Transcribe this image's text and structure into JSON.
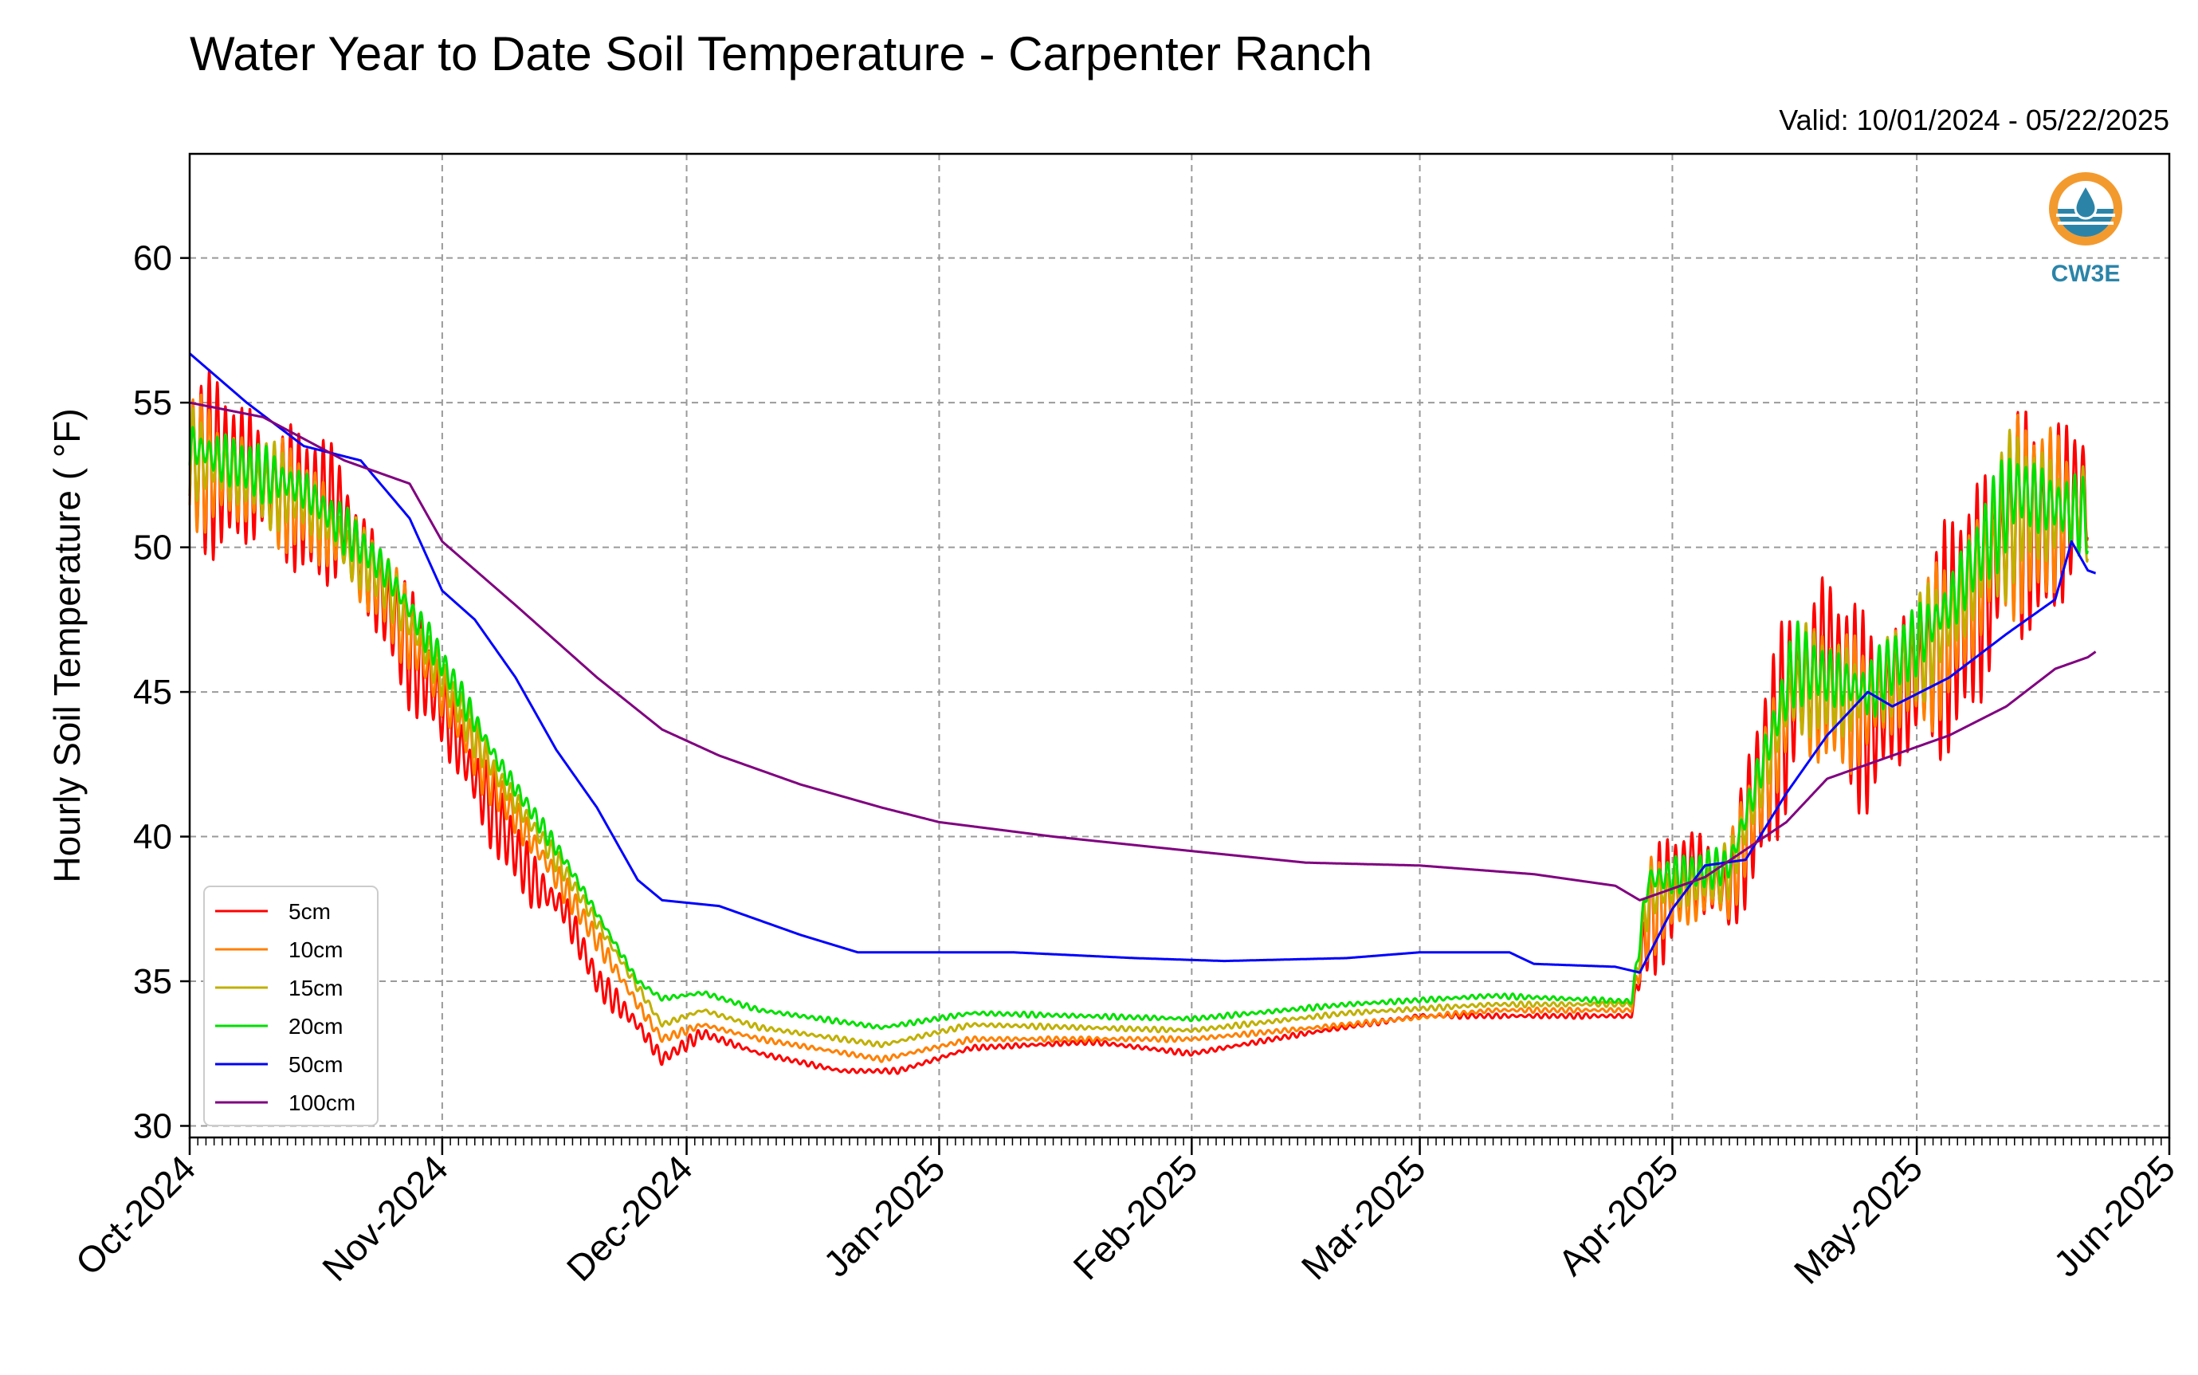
{
  "chart_data": {
    "type": "line",
    "title": "Water Year to Date Soil Temperature - Carpenter Ranch",
    "subtitle": "Valid: 10/01/2024 - 05/22/2025",
    "xlabel": "",
    "ylabel": "Hourly Soil Temperature ( °F)",
    "xlim": [
      "2024-10-01",
      "2025-06-01"
    ],
    "ylim": [
      29.6,
      63.6
    ],
    "x_ticks": [
      {
        "date": "2024-10-01",
        "label": "Oct-2024"
      },
      {
        "date": "2024-11-01",
        "label": "Nov-2024"
      },
      {
        "date": "2024-12-01",
        "label": "Dec-2024"
      },
      {
        "date": "2025-01-01",
        "label": "Jan-2025"
      },
      {
        "date": "2025-02-01",
        "label": "Feb-2025"
      },
      {
        "date": "2025-03-01",
        "label": "Mar-2025"
      },
      {
        "date": "2025-04-01",
        "label": "Apr-2025"
      },
      {
        "date": "2025-05-01",
        "label": "May-2025"
      },
      {
        "date": "2025-06-01",
        "label": "Jun-2025"
      }
    ],
    "y_ticks": [
      30,
      35,
      40,
      45,
      50,
      55,
      60
    ],
    "grid": true,
    "legend_position": "lower-left",
    "logo_text": "CW3E",
    "series": [
      {
        "name": "5cm",
        "color": "#ff0000",
        "points": [
          [
            "2024-10-01",
            53.0,
            3.5
          ],
          [
            "2024-10-08",
            52.5,
            3.2
          ],
          [
            "2024-10-15",
            51.5,
            3.0
          ],
          [
            "2024-10-20",
            51.0,
            2.6
          ],
          [
            "2024-10-25",
            48.0,
            2.4
          ],
          [
            "2024-10-31",
            45.0,
            2.0
          ],
          [
            "2024-11-05",
            42.0,
            1.8
          ],
          [
            "2024-11-08",
            40.5,
            1.5
          ],
          [
            "2024-11-12",
            38.5,
            1.2
          ],
          [
            "2024-11-16",
            37.5,
            0.9
          ],
          [
            "2024-11-20",
            35.0,
            0.6
          ],
          [
            "2024-11-25",
            33.5,
            0.4
          ],
          [
            "2024-11-28",
            32.3,
            0.4
          ],
          [
            "2024-12-03",
            33.2,
            0.2
          ],
          [
            "2024-12-10",
            32.5,
            0.1
          ],
          [
            "2024-12-20",
            31.9,
            0.1
          ],
          [
            "2024-12-27",
            31.9,
            0.1
          ],
          [
            "2025-01-05",
            32.7,
            0.1
          ],
          [
            "2025-01-20",
            32.9,
            0.1
          ],
          [
            "2025-02-01",
            32.5,
            0.1
          ],
          [
            "2025-02-15",
            33.2,
            0.1
          ],
          [
            "2025-03-01",
            33.8,
            0.1
          ],
          [
            "2025-03-20",
            33.8,
            0.1
          ],
          [
            "2025-03-27",
            33.8,
            0.1
          ],
          [
            "2025-03-29",
            37.0,
            2.5
          ],
          [
            "2025-04-03",
            39.0,
            1.8
          ],
          [
            "2025-04-08",
            38.0,
            2.2
          ],
          [
            "2025-04-12",
            42.0,
            3.5
          ],
          [
            "2025-04-16",
            45.0,
            4.5
          ],
          [
            "2025-04-20",
            46.0,
            4.5
          ],
          [
            "2025-04-25",
            44.0,
            3.5
          ],
          [
            "2025-05-01",
            45.5,
            4.0
          ],
          [
            "2025-05-05",
            47.0,
            4.5
          ],
          [
            "2025-05-10",
            49.0,
            5.0
          ],
          [
            "2025-05-13",
            51.0,
            6.0
          ],
          [
            "2025-05-16",
            50.5,
            4.0
          ],
          [
            "2025-05-20",
            51.5,
            3.0
          ],
          [
            "2025-05-22",
            52.0,
            4.5
          ]
        ]
      },
      {
        "name": "10cm",
        "color": "#ff8000",
        "points": [
          [
            "2024-10-01",
            53.0,
            2.5
          ],
          [
            "2024-10-15",
            51.5,
            2.0
          ],
          [
            "2024-10-25",
            48.5,
            1.7
          ],
          [
            "2024-10-31",
            45.5,
            1.4
          ],
          [
            "2024-11-08",
            41.5,
            1.0
          ],
          [
            "2024-11-16",
            38.2,
            0.6
          ],
          [
            "2024-11-25",
            34.2,
            0.3
          ],
          [
            "2024-11-28",
            33.0,
            0.2
          ],
          [
            "2024-12-03",
            33.5,
            0.1
          ],
          [
            "2024-12-10",
            33.0,
            0.1
          ],
          [
            "2024-12-25",
            32.3,
            0.1
          ],
          [
            "2025-01-05",
            33.0,
            0.1
          ],
          [
            "2025-02-01",
            33.0,
            0.1
          ],
          [
            "2025-02-20",
            33.5,
            0.1
          ],
          [
            "2025-03-10",
            34.0,
            0.1
          ],
          [
            "2025-03-27",
            34.0,
            0.1
          ],
          [
            "2025-03-29",
            37.5,
            1.8
          ],
          [
            "2025-04-08",
            38.5,
            1.5
          ],
          [
            "2025-04-16",
            45.0,
            3.0
          ],
          [
            "2025-04-25",
            44.5,
            2.5
          ],
          [
            "2025-05-05",
            47.0,
            3.0
          ],
          [
            "2025-05-13",
            51.0,
            4.0
          ],
          [
            "2025-05-22",
            51.5,
            2.8
          ]
        ]
      },
      {
        "name": "15cm",
        "color": "#c0b000",
        "points": [
          [
            "2024-10-01",
            53.2,
            1.8
          ],
          [
            "2024-10-15",
            51.7,
            1.5
          ],
          [
            "2024-10-25",
            48.8,
            1.2
          ],
          [
            "2024-10-31",
            46.0,
            1.0
          ],
          [
            "2024-11-08",
            42.0,
            0.7
          ],
          [
            "2024-11-16",
            38.8,
            0.4
          ],
          [
            "2024-11-25",
            34.8,
            0.2
          ],
          [
            "2024-11-28",
            33.5,
            0.1
          ],
          [
            "2024-12-03",
            34.0,
            0.1
          ],
          [
            "2024-12-10",
            33.4,
            0.1
          ],
          [
            "2024-12-25",
            32.8,
            0.1
          ],
          [
            "2025-01-05",
            33.5,
            0.1
          ],
          [
            "2025-02-01",
            33.3,
            0.1
          ],
          [
            "2025-02-20",
            33.9,
            0.1
          ],
          [
            "2025-03-10",
            34.2,
            0.1
          ],
          [
            "2025-03-27",
            34.2,
            0.1
          ],
          [
            "2025-03-29",
            38.0,
            1.3
          ],
          [
            "2025-04-08",
            38.8,
            1.0
          ],
          [
            "2025-04-16",
            45.5,
            2.2
          ],
          [
            "2025-04-25",
            44.8,
            1.8
          ],
          [
            "2025-05-05",
            47.5,
            2.2
          ],
          [
            "2025-05-13",
            51.5,
            3.0
          ],
          [
            "2025-05-22",
            51.2,
            2.0
          ]
        ]
      },
      {
        "name": "20cm",
        "color": "#00e000",
        "points": [
          [
            "2024-10-01",
            53.5,
            1.2
          ],
          [
            "2024-10-15",
            52.0,
            1.0
          ],
          [
            "2024-10-25",
            49.2,
            0.8
          ],
          [
            "2024-10-31",
            46.5,
            0.7
          ],
          [
            "2024-11-08",
            42.5,
            0.5
          ],
          [
            "2024-11-16",
            39.2,
            0.3
          ],
          [
            "2024-11-25",
            35.0,
            0.1
          ],
          [
            "2024-11-28",
            34.4,
            0.1
          ],
          [
            "2024-12-03",
            34.6,
            0.1
          ],
          [
            "2024-12-10",
            34.0,
            0.1
          ],
          [
            "2024-12-25",
            33.4,
            0.1
          ],
          [
            "2025-01-05",
            33.9,
            0.1
          ],
          [
            "2025-02-01",
            33.7,
            0.1
          ],
          [
            "2025-02-20",
            34.2,
            0.1
          ],
          [
            "2025-03-10",
            34.5,
            0.1
          ],
          [
            "2025-03-27",
            34.3,
            0.1
          ],
          [
            "2025-03-29",
            38.5,
            0.9
          ],
          [
            "2025-04-08",
            39.0,
            0.7
          ],
          [
            "2025-04-16",
            46.0,
            1.5
          ],
          [
            "2025-04-25",
            45.0,
            1.3
          ],
          [
            "2025-05-05",
            48.0,
            1.5
          ],
          [
            "2025-05-13",
            52.0,
            2.0
          ],
          [
            "2025-05-22",
            51.0,
            1.4
          ]
        ]
      },
      {
        "name": "50cm",
        "color": "#0000ff",
        "points": [
          [
            "2024-10-01",
            56.7,
            0
          ],
          [
            "2024-10-08",
            55.0,
            0
          ],
          [
            "2024-10-15",
            53.5,
            0
          ],
          [
            "2024-10-22",
            53.0,
            0
          ],
          [
            "2024-10-28",
            51.0,
            0
          ],
          [
            "2024-11-01",
            48.5,
            0
          ],
          [
            "2024-11-05",
            47.5,
            0
          ],
          [
            "2024-11-10",
            45.5,
            0
          ],
          [
            "2024-11-15",
            43.0,
            0
          ],
          [
            "2024-11-20",
            41.0,
            0
          ],
          [
            "2024-11-25",
            38.5,
            0
          ],
          [
            "2024-11-28",
            37.8,
            0
          ],
          [
            "2024-12-05",
            37.6,
            0
          ],
          [
            "2024-12-15",
            36.6,
            0
          ],
          [
            "2024-12-22",
            36.0,
            0
          ],
          [
            "2025-01-01",
            36.0,
            0
          ],
          [
            "2025-01-10",
            36.0,
            0
          ],
          [
            "2025-01-25",
            35.8,
            0
          ],
          [
            "2025-02-05",
            35.7,
            0
          ],
          [
            "2025-02-20",
            35.8,
            0
          ],
          [
            "2025-03-01",
            36.0,
            0
          ],
          [
            "2025-03-12",
            36.0,
            0
          ],
          [
            "2025-03-15",
            35.6,
            0
          ],
          [
            "2025-03-25",
            35.5,
            0
          ],
          [
            "2025-03-28",
            35.3,
            0
          ],
          [
            "2025-04-01",
            37.5,
            0
          ],
          [
            "2025-04-05",
            39.0,
            0
          ],
          [
            "2025-04-10",
            39.2,
            0
          ],
          [
            "2025-04-15",
            41.5,
            0
          ],
          [
            "2025-04-20",
            43.5,
            0
          ],
          [
            "2025-04-25",
            45.0,
            0
          ],
          [
            "2025-04-28",
            44.5,
            0
          ],
          [
            "2025-05-05",
            45.5,
            0
          ],
          [
            "2025-05-12",
            47.0,
            0
          ],
          [
            "2025-05-18",
            48.2,
            0
          ],
          [
            "2025-05-20",
            50.2,
            0
          ],
          [
            "2025-05-22",
            49.2,
            0
          ],
          [
            "2025-05-23",
            49.1,
            0
          ]
        ]
      },
      {
        "name": "100cm",
        "color": "#800080",
        "points": [
          [
            "2024-10-01",
            55.0,
            0
          ],
          [
            "2024-10-10",
            54.5,
            0
          ],
          [
            "2024-10-20",
            53.0,
            0
          ],
          [
            "2024-10-28",
            52.2,
            0
          ],
          [
            "2024-11-01",
            50.2,
            0
          ],
          [
            "2024-11-10",
            48.0,
            0
          ],
          [
            "2024-11-20",
            45.5,
            0
          ],
          [
            "2024-11-28",
            43.7,
            0
          ],
          [
            "2024-12-05",
            42.8,
            0
          ],
          [
            "2024-12-15",
            41.8,
            0
          ],
          [
            "2024-12-25",
            41.0,
            0
          ],
          [
            "2025-01-01",
            40.5,
            0
          ],
          [
            "2025-01-15",
            40.0,
            0
          ],
          [
            "2025-02-01",
            39.5,
            0
          ],
          [
            "2025-02-15",
            39.1,
            0
          ],
          [
            "2025-03-01",
            39.0,
            0
          ],
          [
            "2025-03-15",
            38.7,
            0
          ],
          [
            "2025-03-25",
            38.3,
            0
          ],
          [
            "2025-03-28",
            37.8,
            0
          ],
          [
            "2025-04-05",
            38.6,
            0
          ],
          [
            "2025-04-15",
            40.5,
            0
          ],
          [
            "2025-04-20",
            42.0,
            0
          ],
          [
            "2025-04-28",
            42.8,
            0
          ],
          [
            "2025-05-05",
            43.5,
            0
          ],
          [
            "2025-05-12",
            44.5,
            0
          ],
          [
            "2025-05-18",
            45.8,
            0
          ],
          [
            "2025-05-22",
            46.2,
            0
          ],
          [
            "2025-05-23",
            46.4,
            0
          ]
        ]
      }
    ]
  }
}
